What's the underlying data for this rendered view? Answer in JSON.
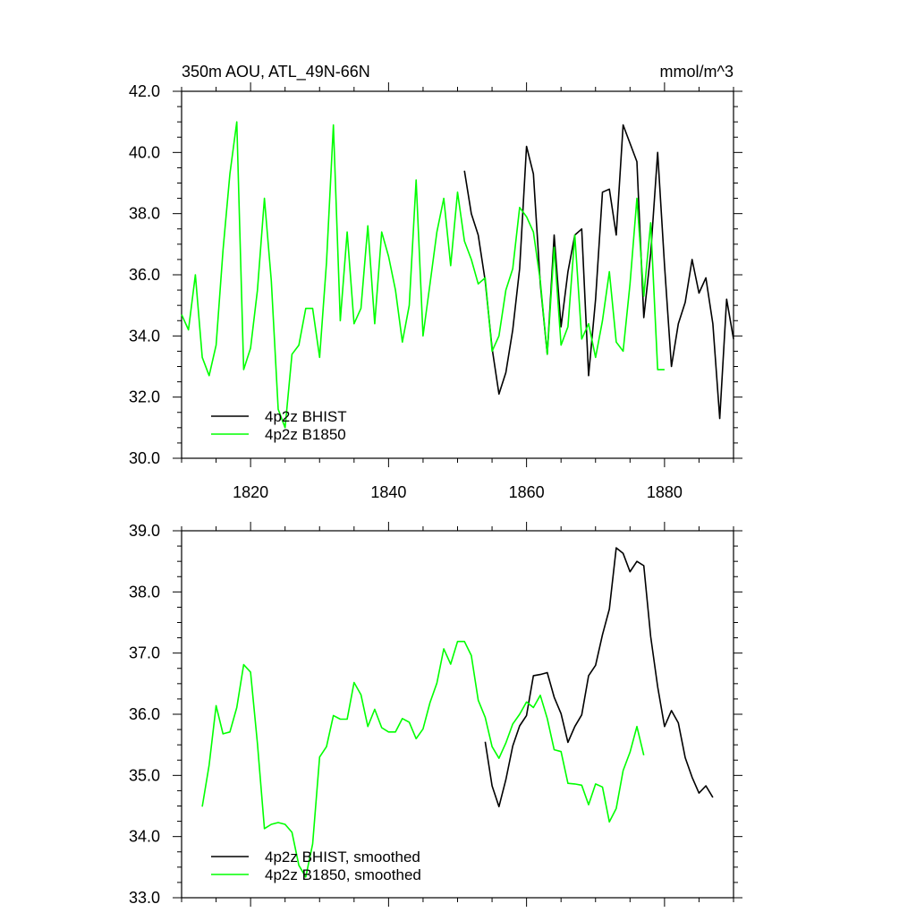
{
  "colors": {
    "bhist": "#000000",
    "b1850": "#00ff00",
    "frame": "#000000"
  },
  "chart_data": [
    {
      "type": "line",
      "title": "350m AOU, ATL_49N-66N",
      "units": "mmol/m^3",
      "xlim": [
        1810,
        1890
      ],
      "ylim": [
        30.0,
        42.0
      ],
      "xticks": [
        1820,
        1840,
        1860,
        1880
      ],
      "xtick_labels": [
        "1820",
        "1840",
        "1860",
        "1880"
      ],
      "yticks": [
        30,
        32,
        34,
        36,
        38,
        40,
        42
      ],
      "ytick_labels": [
        "30.0",
        "32.0",
        "34.0",
        "36.0",
        "38.0",
        "40.0",
        "42.0"
      ],
      "legend": [
        "4p2z BHIST",
        "4p2z B1850"
      ],
      "series": [
        {
          "name": "4p2z BHIST",
          "color": "#000000",
          "x": [
            1851,
            1852,
            1853,
            1854,
            1855,
            1856,
            1857,
            1858,
            1859,
            1860,
            1861,
            1862,
            1863,
            1864,
            1865,
            1866,
            1867,
            1868,
            1869,
            1870,
            1871,
            1872,
            1873,
            1874,
            1875,
            1876,
            1877,
            1878,
            1879,
            1880,
            1881,
            1882,
            1883,
            1884,
            1885,
            1886,
            1887,
            1888,
            1889,
            1890
          ],
          "y": [
            39.4,
            38.0,
            37.3,
            35.8,
            33.6,
            32.1,
            32.8,
            34.2,
            36.2,
            40.2,
            39.3,
            35.7,
            33.4,
            37.3,
            34.3,
            36.1,
            37.3,
            37.5,
            32.7,
            35.2,
            38.7,
            38.8,
            37.3,
            40.9,
            40.3,
            39.7,
            34.6,
            36.7,
            40.0,
            36.3,
            33.0,
            34.4,
            35.1,
            36.5,
            35.4,
            35.9,
            34.4,
            31.3,
            35.2,
            33.9
          ]
        },
        {
          "name": "4p2z B1850",
          "color": "#00ff00",
          "x": [
            1810,
            1811,
            1812,
            1813,
            1814,
            1815,
            1816,
            1817,
            1818,
            1819,
            1820,
            1821,
            1822,
            1823,
            1824,
            1825,
            1826,
            1827,
            1828,
            1829,
            1830,
            1831,
            1832,
            1833,
            1834,
            1835,
            1836,
            1837,
            1838,
            1839,
            1840,
            1841,
            1842,
            1843,
            1844,
            1845,
            1846,
            1847,
            1848,
            1849,
            1850,
            1851,
            1852,
            1853,
            1854,
            1855,
            1856,
            1857,
            1858,
            1859,
            1860,
            1861,
            1862,
            1863,
            1864,
            1865,
            1866,
            1867,
            1868,
            1869,
            1870,
            1871,
            1872,
            1873,
            1874,
            1875,
            1876,
            1877,
            1878,
            1879,
            1880
          ],
          "y": [
            34.7,
            34.2,
            36.0,
            33.3,
            32.7,
            33.7,
            36.8,
            39.3,
            41.0,
            32.9,
            33.6,
            35.5,
            38.5,
            35.8,
            31.6,
            31.0,
            33.4,
            33.7,
            34.9,
            34.9,
            33.3,
            36.4,
            40.9,
            34.5,
            37.4,
            34.4,
            34.9,
            37.6,
            34.4,
            37.4,
            36.6,
            35.5,
            33.8,
            35.0,
            39.1,
            34.0,
            35.7,
            37.4,
            38.5,
            36.3,
            38.7,
            37.1,
            36.5,
            35.7,
            35.9,
            33.5,
            34.0,
            35.5,
            36.2,
            38.2,
            37.9,
            37.4,
            35.8,
            33.4,
            36.9,
            33.7,
            34.3,
            37.3,
            33.9,
            34.4,
            33.3,
            34.5,
            36.1,
            33.8,
            33.5,
            35.7,
            38.5,
            35.3,
            37.7,
            32.9,
            32.9
          ]
        }
      ]
    },
    {
      "type": "line",
      "xlim": [
        1810,
        1890
      ],
      "ylim": [
        33.0,
        39.0
      ],
      "xticks": [
        1820,
        1840,
        1860,
        1880
      ],
      "yticks": [
        33,
        34,
        35,
        36,
        37,
        38,
        39
      ],
      "ytick_labels": [
        "33.0",
        "34.0",
        "35.0",
        "36.0",
        "37.0",
        "38.0",
        "39.0"
      ],
      "legend": [
        "4p2z BHIST, smoothed",
        "4p2z B1850, smoothed"
      ],
      "series": [
        {
          "name": "4p2z BHIST, smoothed",
          "color": "#000000",
          "x": [
            1854,
            1855,
            1856,
            1857,
            1858,
            1859,
            1860,
            1861,
            1862,
            1863,
            1864,
            1865,
            1866,
            1867,
            1868,
            1869,
            1870,
            1871,
            1872,
            1873,
            1874,
            1875,
            1876,
            1877,
            1878,
            1879,
            1880,
            1881,
            1882,
            1883,
            1884,
            1885,
            1886,
            1887
          ],
          "y": [
            35.55,
            34.83,
            34.49,
            34.93,
            35.48,
            35.81,
            35.98,
            36.63,
            36.65,
            36.68,
            36.28,
            36.01,
            35.54,
            35.8,
            35.99,
            36.63,
            36.8,
            37.3,
            37.72,
            38.72,
            38.63,
            38.33,
            38.5,
            38.43,
            37.27,
            36.45,
            35.8,
            36.06,
            35.86,
            35.29,
            34.97,
            34.71,
            34.83,
            34.64
          ]
        },
        {
          "name": "4p2z B1850, smoothed",
          "color": "#00ff00",
          "x": [
            1813,
            1814,
            1815,
            1816,
            1817,
            1818,
            1819,
            1820,
            1821,
            1822,
            1823,
            1824,
            1825,
            1826,
            1827,
            1828,
            1829,
            1830,
            1831,
            1832,
            1833,
            1834,
            1835,
            1836,
            1837,
            1838,
            1839,
            1840,
            1841,
            1842,
            1843,
            1844,
            1845,
            1846,
            1847,
            1848,
            1849,
            1850,
            1851,
            1852,
            1853,
            1854,
            1855,
            1856,
            1857,
            1858,
            1859,
            1860,
            1861,
            1862,
            1863,
            1864,
            1865,
            1866,
            1867,
            1868,
            1869,
            1870,
            1871,
            1872,
            1873,
            1874,
            1875,
            1876,
            1877
          ],
          "y": [
            34.49,
            35.17,
            36.14,
            35.68,
            35.71,
            36.11,
            36.81,
            36.69,
            35.52,
            34.13,
            34.2,
            34.23,
            34.2,
            34.07,
            33.53,
            33.34,
            33.88,
            35.3,
            35.47,
            35.98,
            35.92,
            35.92,
            36.52,
            36.32,
            35.8,
            36.08,
            35.78,
            35.71,
            35.71,
            35.93,
            35.87,
            35.6,
            35.76,
            36.19,
            36.51,
            37.07,
            36.82,
            37.19,
            37.19,
            36.96,
            36.23,
            35.95,
            35.47,
            35.28,
            35.53,
            35.84,
            36.0,
            36.2,
            36.11,
            36.31,
            35.93,
            35.42,
            35.39,
            34.87,
            34.86,
            34.84,
            34.52,
            34.86,
            34.81,
            34.24,
            34.46,
            35.08,
            35.38,
            35.8,
            35.33
          ]
        }
      ]
    }
  ]
}
